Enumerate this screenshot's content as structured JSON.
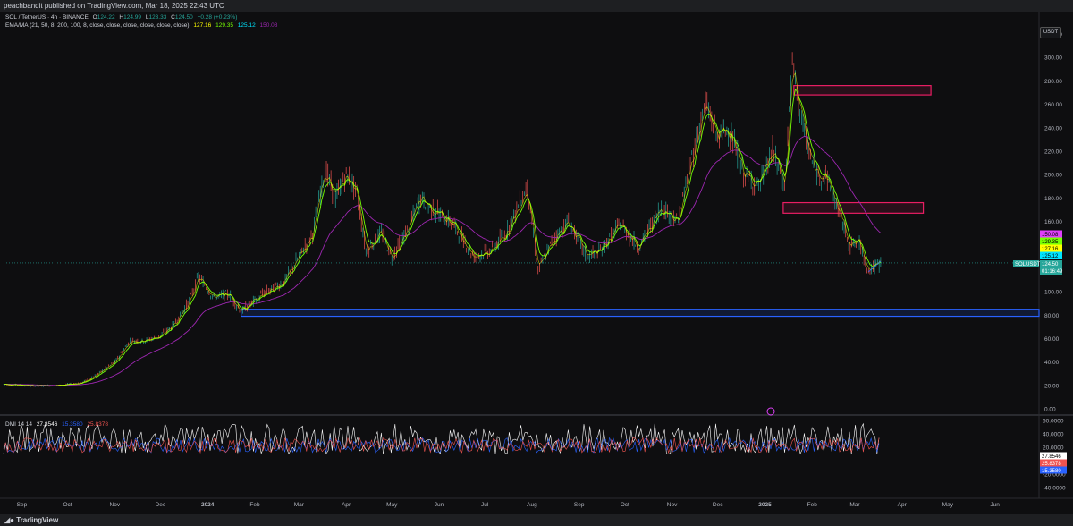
{
  "topbar": {
    "text": "peachbandit published on TradingView.com, Mar 18, 2025 22:43 UTC"
  },
  "legend": {
    "symbol": "SOL / TetherUS · 4h · BINANCE",
    "o_label": "O",
    "o": "124.22",
    "h_label": "H",
    "h": "124.99",
    "l_label": "L",
    "l": "123.33",
    "c_label": "C",
    "c": "124.50",
    "change": "+0.28 (+0.23%)",
    "ema_label": "EMA/MA (21, 50, 8, 200, 100, 8, close, close, close, close, close, close)",
    "ema1": "127.16",
    "ema2": "129.35",
    "ema3": "125.12",
    "ema4": "150.08",
    "dmi_label": "DMI 14 14",
    "dmi1": "27.8546",
    "dmi2": "15.3580",
    "dmi3": "25.8378"
  },
  "currency_button": "USDT",
  "bottombar": {
    "logo": "TradingView"
  },
  "chart_data": [
    {
      "type": "line",
      "title": "SOL / TetherUS · 4h · BINANCE",
      "y_axis_ticks": [
        "320.00",
        "300.00",
        "280.00",
        "260.00",
        "240.00",
        "220.00",
        "200.00",
        "180.00",
        "160.00",
        "140.00",
        "100.00",
        "80.00",
        "60.00",
        "40.00",
        "20.00",
        "0.00"
      ],
      "ylim": [
        0,
        320
      ],
      "x_axis_ticks": [
        "Sep",
        "Oct",
        "Nov",
        "Dec",
        "2024",
        "Feb",
        "Mar",
        "Apr",
        "May",
        "Jun",
        "Jul",
        "Aug",
        "Sep",
        "Oct",
        "Nov",
        "Dec",
        "2025",
        "Feb",
        "Mar",
        "Apr",
        "May",
        "Jun"
      ],
      "series": [
        {
          "values": [
            [
              "2023-08-20",
              21
            ],
            [
              "2023-09-10",
              19.5
            ],
            [
              "2023-09-25",
              20
            ],
            [
              "2023-10-10",
              22
            ],
            [
              "2023-10-20",
              29
            ],
            [
              "2023-11-01",
              40
            ],
            [
              "2023-11-11",
              58
            ],
            [
              "2023-11-20",
              58
            ],
            [
              "2023-12-01",
              62
            ],
            [
              "2023-12-10",
              72
            ],
            [
              "2023-12-20",
              92
            ],
            [
              "2023-12-26",
              113
            ],
            [
              "2024-01-05",
              95
            ],
            [
              "2024-01-15",
              98
            ],
            [
              "2024-01-23",
              83
            ],
            [
              "2024-02-05",
              97
            ],
            [
              "2024-02-20",
              108
            ],
            [
              "2024-03-01",
              130
            ],
            [
              "2024-03-10",
              150
            ],
            [
              "2024-03-18",
              205
            ],
            [
              "2024-03-25",
              180
            ],
            [
              "2024-04-01",
              200
            ],
            [
              "2024-04-08",
              185
            ],
            [
              "2024-04-14",
              135
            ],
            [
              "2024-04-24",
              150
            ],
            [
              "2024-05-01",
              130
            ],
            [
              "2024-05-10",
              150
            ],
            [
              "2024-05-20",
              180
            ],
            [
              "2024-05-28",
              170
            ],
            [
              "2024-06-10",
              158
            ],
            [
              "2024-06-24",
              130
            ],
            [
              "2024-07-05",
              135
            ],
            [
              "2024-07-15",
              150
            ],
            [
              "2024-07-29",
              190
            ],
            [
              "2024-08-05",
              118
            ],
            [
              "2024-08-15",
              145
            ],
            [
              "2024-08-25",
              160
            ],
            [
              "2024-09-06",
              130
            ],
            [
              "2024-09-15",
              135
            ],
            [
              "2024-09-28",
              158
            ],
            [
              "2024-10-10",
              138
            ],
            [
              "2024-10-25",
              172
            ],
            [
              "2024-11-05",
              160
            ],
            [
              "2024-11-14",
              215
            ],
            [
              "2024-11-23",
              260
            ],
            [
              "2024-12-01",
              232
            ],
            [
              "2024-12-08",
              240
            ],
            [
              "2024-12-18",
              200
            ],
            [
              "2024-12-28",
              190
            ],
            [
              "2025-01-06",
              220
            ],
            [
              "2025-01-14",
              190
            ],
            [
              "2025-01-19",
              295
            ],
            [
              "2025-01-26",
              240
            ],
            [
              "2025-02-03",
              200
            ],
            [
              "2025-02-10",
              200
            ],
            [
              "2025-02-18",
              170
            ],
            [
              "2025-02-26",
              140
            ],
            [
              "2025-03-04",
              142
            ],
            [
              "2025-03-10",
              118
            ],
            [
              "2025-03-18",
              124.5
            ]
          ]
        },
        {
          "name": "",
          "color": "#e040fb",
          "note": "long moving average"
        }
      ],
      "price_labels": [
        {
          "text": "150.08",
          "color": "#e040fb"
        },
        {
          "text": "129.35",
          "color": "#76ff03"
        },
        {
          "text": "127.16",
          "color": "#ffff00"
        },
        {
          "text": "125.12",
          "color": "#00e5ff"
        },
        {
          "text": "SOLUSDT",
          "color": "#26a69a"
        },
        {
          "text": "124.50",
          "color": "#26a69a"
        },
        {
          "text": "01:16:49",
          "color": "#26a69a"
        }
      ],
      "zones": [
        {
          "color": "#e91e63",
          "from": "2025-01-20",
          "to": "2025-04-20",
          "ylow": 268,
          "yhigh": 276
        },
        {
          "color": "#e91e63",
          "from": "2025-01-13",
          "to": "2025-04-15",
          "ylow": 167,
          "yhigh": 176
        },
        {
          "color": "#2962ff",
          "from": "2024-01-23",
          "to": "end",
          "ylow": 79,
          "yhigh": 85
        }
      ],
      "grid": false
    },
    {
      "type": "line",
      "title": "DMI",
      "y_axis_ticks": [
        "60.0000",
        "40.0000",
        "20.0000",
        "0.0000",
        "-20.0000",
        "-40.0000"
      ],
      "ylim": [
        -40,
        60
      ],
      "series": [
        {
          "color": "#ffffff",
          "last": 27.8546
        },
        {
          "color": "#2962ff",
          "last": 15.358
        },
        {
          "color": "#ef5350",
          "last": 25.8378
        }
      ]
    }
  ]
}
